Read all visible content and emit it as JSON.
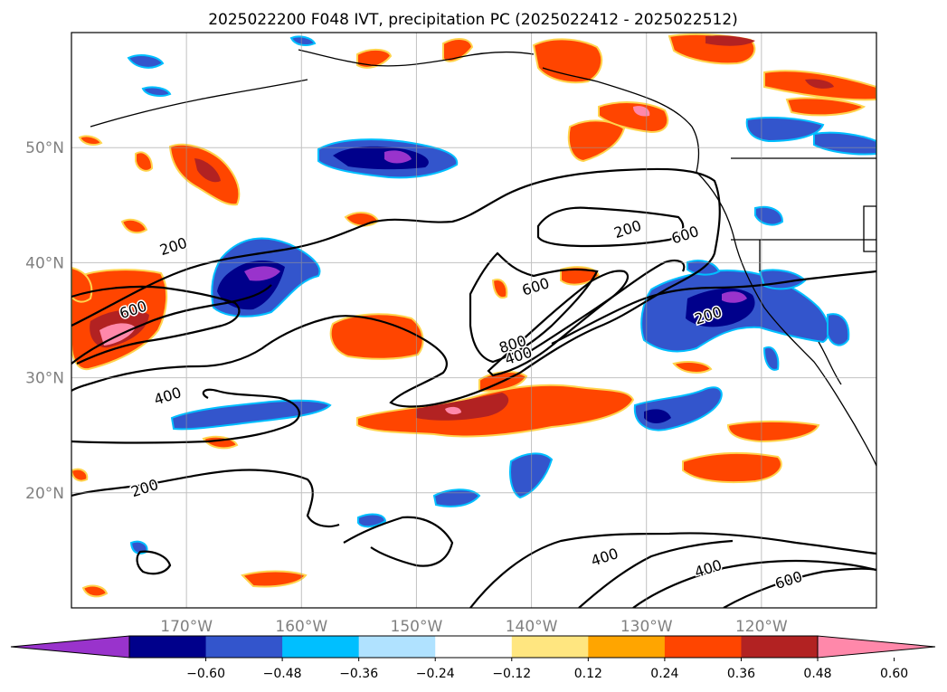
{
  "title": "2025022200 F048 IVT, precipitation PC (2025022412 - 2025022512)",
  "map": {
    "lon_range": [
      -180,
      -110
    ],
    "lat_range": [
      10,
      60
    ],
    "lat_ticks": [
      {
        "value": 50,
        "label": "50°N"
      },
      {
        "value": 40,
        "label": "40°N"
      },
      {
        "value": 30,
        "label": "30°N"
      },
      {
        "value": 20,
        "label": "20°N"
      }
    ],
    "lon_ticks": [
      {
        "value": -170,
        "label": "170°W"
      },
      {
        "value": -160,
        "label": "160°W"
      },
      {
        "value": -150,
        "label": "150°W"
      },
      {
        "value": -140,
        "label": "140°W"
      },
      {
        "value": -130,
        "label": "130°W"
      },
      {
        "value": -120,
        "label": "120°W"
      }
    ],
    "gridlines": true
  },
  "colorbar": {
    "colors": [
      "#9933cc",
      "#00008b",
      "#3355cc",
      "#00bfff",
      "#b0e2ff",
      "#ffffff",
      "#ffe680",
      "#ffa500",
      "#ff4500",
      "#b22222",
      "#ff88aa"
    ],
    "tick_labels": [
      "−0.60",
      "−0.48",
      "−0.36",
      "−0.24",
      "−0.12",
      "0.12",
      "0.24",
      "0.36",
      "0.48",
      "0.60"
    ],
    "extend": "both"
  },
  "ivt_contours": {
    "units_levels": [
      200,
      400,
      600,
      800
    ],
    "labels": [
      {
        "text": "200",
        "lon": -171.0,
        "lat": 41.0
      },
      {
        "text": "600",
        "lon": -174.5,
        "lat": 35.5
      },
      {
        "text": "400",
        "lon": -171.5,
        "lat": 28.0
      },
      {
        "text": "200",
        "lon": -173.5,
        "lat": 20.0
      },
      {
        "text": "200",
        "lon": -131.5,
        "lat": 42.5
      },
      {
        "text": "600",
        "lon": -126.5,
        "lat": 42.0
      },
      {
        "text": "600",
        "lon": -139.5,
        "lat": 37.5
      },
      {
        "text": "800",
        "lon": -141.5,
        "lat": 32.5
      },
      {
        "text": "400",
        "lon": -141.0,
        "lat": 31.5
      },
      {
        "text": "200",
        "lon": -124.5,
        "lat": 35.0
      },
      {
        "text": "400",
        "lon": -133.5,
        "lat": 14.0
      },
      {
        "text": "400",
        "lon": -124.5,
        "lat": 13.0
      },
      {
        "text": "600",
        "lon": -117.5,
        "lat": 12.0
      }
    ]
  }
}
